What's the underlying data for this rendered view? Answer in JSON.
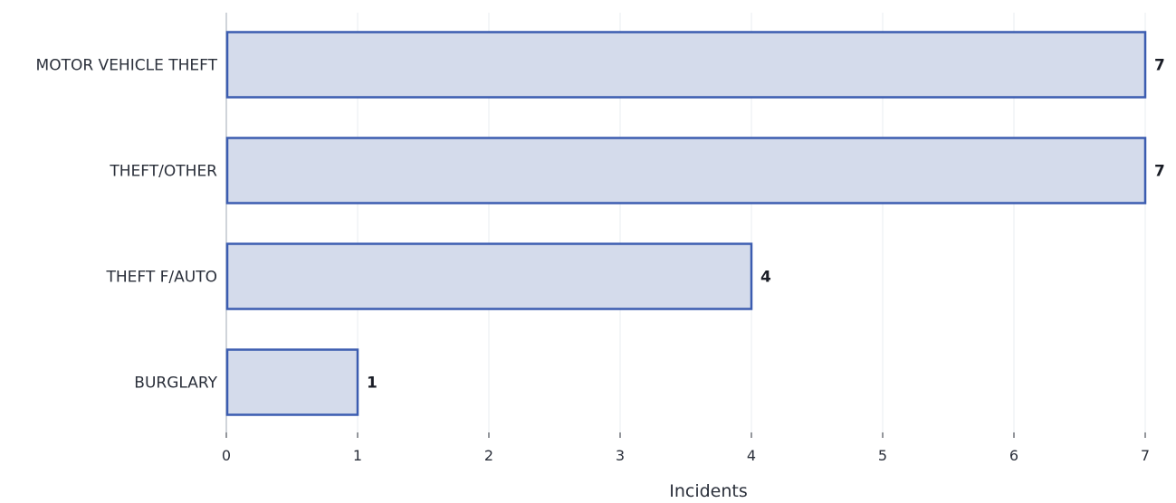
{
  "chart_data": {
    "type": "bar",
    "orientation": "horizontal",
    "categories": [
      "MOTOR VEHICLE THEFT",
      "THEFT/OTHER",
      "THEFT F/AUTO",
      "BURGLARY"
    ],
    "values": [
      7,
      7,
      4,
      1
    ],
    "xlabel": "Incidents",
    "ylabel": "",
    "title": "",
    "xlim": [
      0,
      7
    ],
    "xticks": [
      0,
      1,
      2,
      3,
      4,
      5,
      6,
      7
    ],
    "grid": "vertical",
    "legend": "none",
    "colors": {
      "bar_fill": "#d4dbeb",
      "bar_stroke": "#3b5cb0",
      "grid": "#e9ecf0",
      "axis": "#d0d4da",
      "text": "#2a2f3a"
    }
  }
}
